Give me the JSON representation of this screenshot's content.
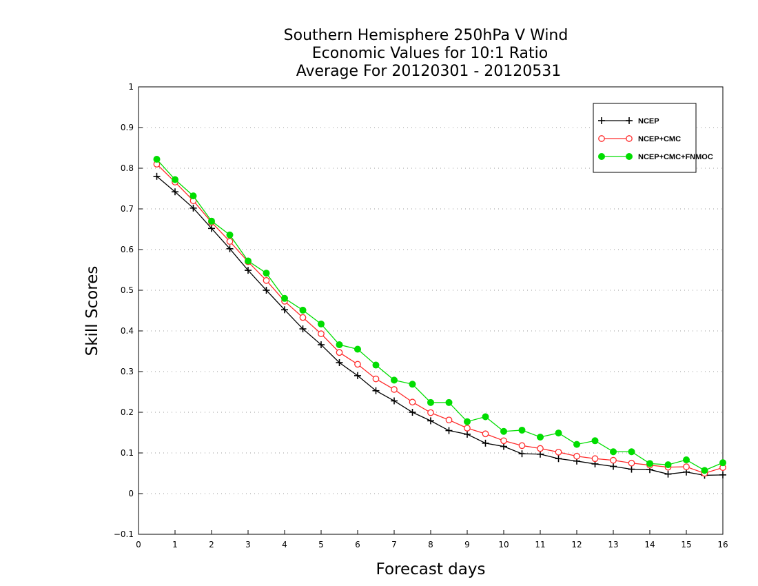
{
  "chart_data": {
    "type": "line",
    "title": [
      "Southern Hemisphere 250hPa V Wind",
      "Economic Values for 10:1 Ratio",
      "Average For 20120301 - 20120531"
    ],
    "xlabel": "Forecast days",
    "ylabel": "Skill Scores",
    "xlim": [
      0,
      16
    ],
    "ylim": [
      -0.1,
      1
    ],
    "xticks": [
      "0",
      "1",
      "2",
      "3",
      "4",
      "5",
      "6",
      "7",
      "8",
      "9",
      "10",
      "11",
      "12",
      "13",
      "14",
      "15",
      "16"
    ],
    "yticks": [
      "−0.1",
      "0",
      "0.1",
      "0.2",
      "0.3",
      "0.4",
      "0.5",
      "0.6",
      "0.7",
      "0.8",
      "0.9",
      "1"
    ],
    "grid": true,
    "legend_position": "top-right",
    "x": [
      0.5,
      1,
      1.5,
      2,
      2.5,
      3,
      3.5,
      4,
      4.5,
      5,
      5.5,
      6,
      6.5,
      7,
      7.5,
      8,
      8.5,
      9,
      9.5,
      10,
      10.5,
      11,
      11.5,
      12,
      12.5,
      13,
      13.5,
      14,
      14.5,
      15,
      15.5,
      16
    ],
    "series": [
      {
        "name": "NCEP",
        "color": "#000000",
        "marker": "plus",
        "values": [
          0.78,
          0.742,
          0.702,
          0.652,
          0.602,
          0.549,
          0.5,
          0.452,
          0.405,
          0.366,
          0.322,
          0.29,
          0.253,
          0.228,
          0.2,
          0.179,
          0.155,
          0.146,
          0.124,
          0.116,
          0.098,
          0.097,
          0.086,
          0.08,
          0.073,
          0.067,
          0.06,
          0.059,
          0.048,
          0.053,
          0.045,
          0.046
        ]
      },
      {
        "name": "NCEP+CMC",
        "color": "#ff2a2a",
        "marker": "open-circle",
        "values": [
          0.81,
          0.766,
          0.72,
          0.667,
          0.62,
          0.57,
          0.524,
          0.473,
          0.433,
          0.393,
          0.347,
          0.318,
          0.282,
          0.256,
          0.225,
          0.199,
          0.181,
          0.161,
          0.147,
          0.13,
          0.118,
          0.111,
          0.102,
          0.092,
          0.086,
          0.082,
          0.075,
          0.07,
          0.065,
          0.066,
          0.05,
          0.064
        ]
      },
      {
        "name": "NCEP+CMC+FNMOC",
        "color": "#00dd00",
        "marker": "filled-circle",
        "values": [
          0.822,
          0.772,
          0.732,
          0.67,
          0.636,
          0.572,
          0.542,
          0.48,
          0.451,
          0.417,
          0.366,
          0.355,
          0.316,
          0.279,
          0.269,
          0.224,
          0.224,
          0.177,
          0.189,
          0.153,
          0.156,
          0.139,
          0.149,
          0.121,
          0.13,
          0.103,
          0.103,
          0.074,
          0.071,
          0.083,
          0.057,
          0.076
        ]
      }
    ]
  }
}
